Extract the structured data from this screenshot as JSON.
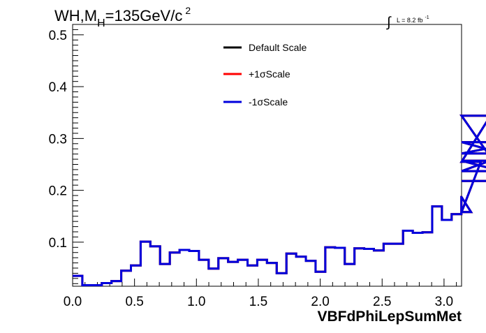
{
  "chart_data": {
    "type": "line",
    "title": {
      "main": "WH,M",
      "subscript": "H",
      "rest": "=135GeV/c",
      "superscript": "2"
    },
    "luminosity": {
      "text": "L = 8.2 fb",
      "superscript": "-1"
    },
    "xlabel": "VBFdPhiLepSumMet",
    "ylabel": "",
    "xlim": [
      0,
      3.1416
    ],
    "ylim": [
      0.015,
      0.52
    ],
    "x_ticks": [
      "0.0",
      "0.5",
      "1.0",
      "1.5",
      "2.0",
      "2.5",
      "3.0"
    ],
    "x_tick_values": [
      0,
      0.5,
      1.0,
      1.5,
      2.0,
      2.5,
      3.0
    ],
    "y_ticks": [
      "0.1",
      "0.2",
      "0.3",
      "0.4",
      "0.5"
    ],
    "y_tick_values": [
      0.1,
      0.2,
      0.3,
      0.4,
      0.5
    ],
    "bin_width": 0.0785,
    "legend_placement": "top-center",
    "series": [
      {
        "name": "Default Scale",
        "color": "#000000",
        "values": [
          0.035,
          0.017,
          0.017,
          0.021,
          0.025,
          0.045,
          0.055,
          0.101,
          0.092,
          0.058,
          0.08,
          0.085,
          0.083,
          0.066,
          0.049,
          0.069,
          0.062,
          0.066,
          0.055,
          0.066,
          0.06,
          0.04,
          0.078,
          0.072,
          0.064,
          0.043,
          0.09,
          0.089,
          0.058,
          0.088,
          0.087,
          0.084,
          0.097,
          0.097,
          0.122,
          0.118,
          0.119,
          0.169,
          0.143,
          0.154,
          0.187,
          0.158,
          0.255,
          0.344,
          0.237,
          0.271,
          0.293,
          0.257,
          0.218
        ]
      },
      {
        "name": "+1σScale",
        "color": "#ff0000",
        "values": [
          0.035,
          0.017,
          0.017,
          0.021,
          0.025,
          0.045,
          0.055,
          0.101,
          0.092,
          0.058,
          0.08,
          0.085,
          0.083,
          0.066,
          0.049,
          0.069,
          0.062,
          0.066,
          0.055,
          0.066,
          0.06,
          0.04,
          0.078,
          0.072,
          0.064,
          0.043,
          0.09,
          0.089,
          0.058,
          0.088,
          0.087,
          0.084,
          0.097,
          0.097,
          0.122,
          0.118,
          0.119,
          0.169,
          0.143,
          0.154,
          0.187,
          0.158,
          0.255,
          0.344,
          0.237,
          0.271,
          0.293,
          0.257,
          0.218
        ]
      },
      {
        "name": "-1σScale",
        "color": "#0000dd",
        "values": [
          0.035,
          0.017,
          0.017,
          0.021,
          0.025,
          0.045,
          0.055,
          0.101,
          0.092,
          0.058,
          0.08,
          0.085,
          0.083,
          0.066,
          0.049,
          0.069,
          0.062,
          0.066,
          0.055,
          0.066,
          0.06,
          0.04,
          0.078,
          0.072,
          0.064,
          0.043,
          0.09,
          0.089,
          0.058,
          0.088,
          0.087,
          0.084,
          0.097,
          0.097,
          0.122,
          0.118,
          0.119,
          0.169,
          0.143,
          0.154,
          0.187,
          0.158,
          0.255,
          0.344,
          0.237,
          0.271,
          0.293,
          0.257,
          0.218
        ]
      }
    ]
  }
}
